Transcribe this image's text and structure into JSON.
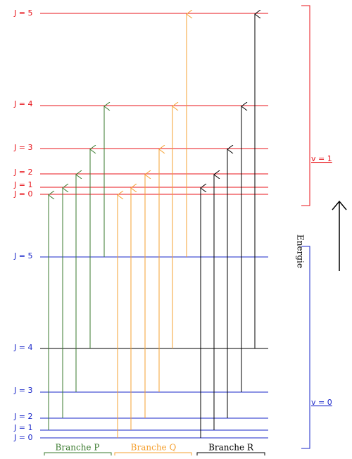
{
  "upper_levels": {
    "labels": [
      "J = 5",
      "J = 4",
      "J = 3",
      "J = 2",
      "J = 1",
      "J = 0"
    ],
    "band": "v = 1"
  },
  "lower_levels": {
    "labels": [
      "J = 5",
      "J = 4",
      "J = 3",
      "J = 2",
      "J = 1",
      "J = 0"
    ],
    "band": "v = 0"
  },
  "energy_label": "Energie",
  "branches": [
    "Branche P",
    "Branche Q",
    "Branche R"
  ]
}
